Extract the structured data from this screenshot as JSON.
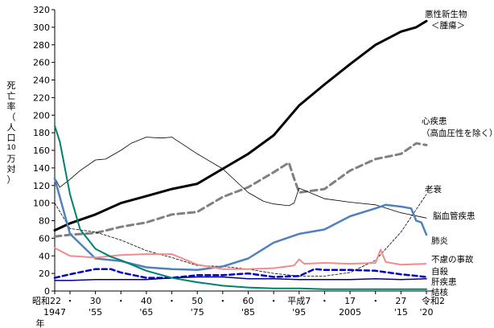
{
  "chart_data": {
    "type": "line",
    "ylabel": "死亡率（人口10万対）",
    "ylabel_chars": [
      "死",
      "亡",
      "率",
      "（",
      "人",
      "口",
      "10",
      "万",
      "対",
      "）"
    ],
    "ylim": [
      0,
      320
    ],
    "yticks": [
      0,
      20,
      40,
      60,
      80,
      100,
      120,
      140,
      160,
      180,
      200,
      220,
      240,
      260,
      280,
      300,
      320
    ],
    "xlim": [
      1947,
      2020
    ],
    "xticks_top": [
      {
        "x": 1947,
        "label": "昭和22"
      },
      {
        "x": 1950,
        "label": "・"
      },
      {
        "x": 1955,
        "label": "30"
      },
      {
        "x": 1960,
        "label": "・"
      },
      {
        "x": 1965,
        "label": "40"
      },
      {
        "x": 1970,
        "label": "・"
      },
      {
        "x": 1975,
        "label": "50"
      },
      {
        "x": 1980,
        "label": "・"
      },
      {
        "x": 1985,
        "label": "60"
      },
      {
        "x": 1990,
        "label": "・"
      },
      {
        "x": 1995,
        "label": "平成7"
      },
      {
        "x": 2000,
        "label": "・"
      },
      {
        "x": 2005,
        "label": "17"
      },
      {
        "x": 2010,
        "label": "・"
      },
      {
        "x": 2015,
        "label": "27"
      },
      {
        "x": 2020,
        "label": "令和2"
      }
    ],
    "xticks_bottom": [
      {
        "x": 1947,
        "label": "1947"
      },
      {
        "x": 1955,
        "label": "'55"
      },
      {
        "x": 1965,
        "label": "'65"
      },
      {
        "x": 1975,
        "label": "'75"
      },
      {
        "x": 1985,
        "label": "'85"
      },
      {
        "x": 1995,
        "label": "'95"
      },
      {
        "x": 2005,
        "label": "2005"
      },
      {
        "x": 2015,
        "label": "'15"
      },
      {
        "x": 2020,
        "label": "'20"
      }
    ],
    "xlabel": "年",
    "series": [
      {
        "name": "悪性新生物＜腫瘍＞",
        "label_lines": [
          "悪性新生物",
          "＜腫瘍＞"
        ],
        "color": "#000000",
        "width": 3,
        "dash": "",
        "x": [
          1947,
          1950,
          1955,
          1960,
          1965,
          1970,
          1975,
          1980,
          1985,
          1990,
          1995,
          2000,
          2005,
          2010,
          2015,
          2018,
          2020
        ],
        "y": [
          69,
          77,
          87,
          100,
          108,
          116,
          122,
          139,
          156,
          177,
          211,
          235,
          258,
          280,
          295,
          300,
          307
        ]
      },
      {
        "name": "心疾患（高血圧性を除く）",
        "label_lines": [
          "心疾患",
          "（高血圧性を除く）"
        ],
        "color": "#808080",
        "width": 3,
        "dash": "8,5",
        "x": [
          1947,
          1950,
          1955,
          1960,
          1965,
          1970,
          1975,
          1980,
          1985,
          1990,
          1993,
          1994,
          1995,
          2000,
          2005,
          2010,
          2015,
          2018,
          2020
        ],
        "y": [
          62,
          64,
          66,
          73,
          78,
          87,
          90,
          107,
          118,
          135,
          146,
          128,
          112,
          116,
          137,
          150,
          156,
          168,
          166
        ]
      },
      {
        "name": "老衰",
        "label_lines": [
          "老衰"
        ],
        "color": "#000000",
        "width": 0.8,
        "dash": "3,2",
        "x": [
          1947,
          1950,
          1955,
          1960,
          1965,
          1970,
          1975,
          1980,
          1985,
          1990,
          1995,
          2000,
          2005,
          2010,
          2015,
          2020
        ],
        "y": [
          100,
          71,
          67,
          58,
          46,
          38,
          29,
          28,
          25,
          20,
          17,
          17,
          21,
          35,
          67,
          110
        ]
      },
      {
        "name": "脳血管疾患",
        "label_lines": [
          "脳血管疾患"
        ],
        "color": "#000000",
        "width": 0.8,
        "dash": "",
        "x": [
          1947,
          1948,
          1950,
          1952,
          1955,
          1957,
          1960,
          1962,
          1965,
          1968,
          1970,
          1975,
          1980,
          1985,
          1988,
          1990,
          1993,
          1994,
          1995,
          2000,
          2005,
          2010,
          2015,
          2020
        ],
        "y": [
          129,
          118,
          127,
          137,
          149,
          150,
          160,
          168,
          175,
          174,
          175,
          156,
          139,
          112,
          102,
          99,
          97,
          100,
          117,
          105,
          101,
          98,
          89,
          83
        ]
      },
      {
        "name": "肺炎",
        "label_lines": [
          "肺炎"
        ],
        "color": "#4f81bd",
        "width": 2.5,
        "dash": "",
        "x": [
          1947,
          1950,
          1955,
          1960,
          1965,
          1970,
          1975,
          1980,
          1985,
          1990,
          1995,
          2000,
          2005,
          2010,
          2012,
          2015,
          2017,
          2018,
          2019,
          2020
        ],
        "y": [
          128,
          65,
          37,
          34,
          27,
          25,
          24,
          28,
          37,
          55,
          65,
          70,
          85,
          94,
          98,
          96,
          94,
          80,
          78,
          64
        ]
      },
      {
        "name": "不慮の事故",
        "label_lines": [
          "不慮の事故"
        ],
        "color": "#f28a8a",
        "width": 2,
        "dash": "3,1",
        "x": [
          1947,
          1950,
          1955,
          1960,
          1965,
          1970,
          1975,
          1980,
          1985,
          1990,
          1994,
          1995,
          1996,
          2000,
          2005,
          2010,
          2011,
          2012,
          2015,
          2020
        ],
        "y": [
          49,
          40,
          38,
          41,
          42,
          42,
          30,
          25,
          25,
          26,
          29,
          36,
          31,
          32,
          31,
          32,
          47,
          33,
          30,
          31
        ]
      },
      {
        "name": "自殺",
        "label_lines": [
          "自殺"
        ],
        "color": "#0000cc",
        "width": 2.5,
        "dash": "6,4",
        "x": [
          1947,
          1950,
          1955,
          1958,
          1960,
          1965,
          1970,
          1975,
          1980,
          1985,
          1990,
          1995,
          1998,
          2000,
          2005,
          2010,
          2015,
          2020
        ],
        "y": [
          15,
          19,
          25,
          25,
          21,
          15,
          15,
          18,
          18,
          20,
          16,
          17,
          25,
          24,
          24,
          23,
          19,
          16
        ]
      },
      {
        "name": "肝疾患",
        "label_lines": [
          "肝疾患"
        ],
        "color": "#000080",
        "width": 1.5,
        "dash": "",
        "x": [
          1947,
          1950,
          1955,
          1960,
          1965,
          1970,
          1975,
          1980,
          1985,
          1990,
          1995,
          2000,
          2005,
          2010,
          2015,
          2020
        ],
        "y": [
          12,
          12,
          13,
          13,
          13,
          15,
          16,
          16,
          14,
          14,
          13,
          13,
          13,
          14,
          13,
          14
        ]
      },
      {
        "name": "結核",
        "label_lines": [
          "結核"
        ],
        "color": "#00806e",
        "width": 2,
        "dash": "",
        "x": [
          1947,
          1948,
          1950,
          1952,
          1955,
          1958,
          1960,
          1965,
          1970,
          1975,
          1980,
          1985,
          1990,
          1995,
          2000,
          2010,
          2020
        ],
        "y": [
          188,
          170,
          110,
          70,
          48,
          39,
          35,
          23,
          15,
          10,
          6,
          4,
          3,
          3,
          2,
          2,
          2
        ]
      }
    ]
  }
}
